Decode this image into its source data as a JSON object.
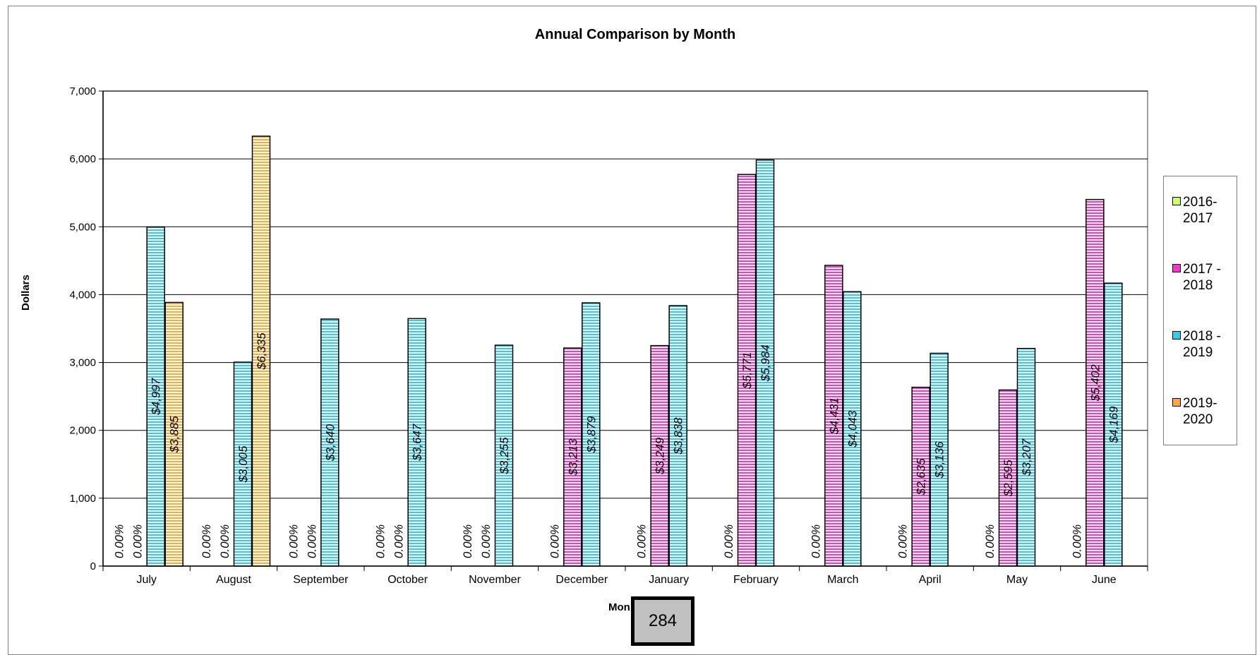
{
  "chart_data": {
    "type": "bar",
    "title": "Annual Comparison by Month",
    "ylabel": "Dollars",
    "xlabel": "Mon",
    "ylim": [
      0,
      7000
    ],
    "yticks": [
      0,
      1000,
      2000,
      3000,
      4000,
      5000,
      6000,
      7000
    ],
    "ytick_labels": [
      "0",
      "1,000",
      "2,000",
      "3,000",
      "4,000",
      "5,000",
      "6,000",
      "7,000"
    ],
    "grid": true,
    "legend_position": "right",
    "categories": [
      "July",
      "August",
      "September",
      "October",
      "November",
      "December",
      "January",
      "February",
      "March",
      "April",
      "May",
      "June"
    ],
    "series": [
      {
        "name": "2016-\n2017",
        "color": "#ccff66",
        "values": [
          0,
          0,
          0,
          0,
          0,
          0,
          0,
          0,
          0,
          0,
          0,
          0
        ],
        "labels": [
          "0.00%",
          "0.00%",
          "0.00%",
          "0.00%",
          "0.00%",
          "0.00%",
          "0.00%",
          "0.00%",
          "0.00%",
          "0.00%",
          "0.00%",
          "0.00%"
        ]
      },
      {
        "name": "2017 -\n2018",
        "color": "#ff33cc",
        "values": [
          0,
          0,
          0,
          0,
          0,
          3213,
          3249,
          5771,
          4431,
          2635,
          2595,
          5402
        ],
        "labels": [
          "0.00%",
          "0.00%",
          "0.00%",
          "0.00%",
          "0.00%",
          "$3,213",
          "$3,249",
          "$5,771",
          "$4,431",
          "$2,635",
          "$2,595",
          "$5,402"
        ]
      },
      {
        "name": "2018 -\n2019",
        "color": "#33ccee",
        "values": [
          4997,
          3005,
          3640,
          3647,
          3255,
          3879,
          3838,
          5984,
          4043,
          3136,
          3207,
          4169
        ],
        "labels": [
          "$4,997",
          "$3,005",
          "$3,640",
          "$3,647",
          "$3,255",
          "$3,879",
          "$3,838",
          "$5,984",
          "$4,043",
          "$3,136",
          "$3,207",
          "$4,169"
        ]
      },
      {
        "name": "2019-\n2020",
        "color": "#ffaa33",
        "values": [
          3885,
          6335,
          null,
          null,
          null,
          null,
          null,
          null,
          null,
          null,
          null,
          null
        ],
        "labels": [
          "$3,885",
          "$6,335",
          "",
          "",
          "",
          "",
          "",
          "",
          "",
          "",
          "",
          ""
        ]
      }
    ]
  },
  "page_number": "284"
}
